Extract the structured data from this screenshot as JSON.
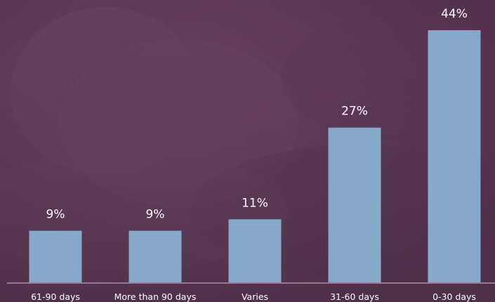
{
  "chart_data": {
    "type": "bar",
    "categories": [
      "61-90 days",
      "More than 90 days",
      "Varies",
      "31-60 days",
      "0-30 days"
    ],
    "values": [
      9,
      9,
      11,
      27,
      44
    ],
    "value_labels": [
      "9%",
      "9%",
      "11%",
      "27%",
      "44%"
    ],
    "ylim": [
      0,
      44
    ],
    "grid": false,
    "legend": "none"
  },
  "colors": {
    "background": "#5e3a58",
    "bar": "#85a8cb",
    "text": "#ffffff",
    "axis": "#d7c8d3"
  }
}
